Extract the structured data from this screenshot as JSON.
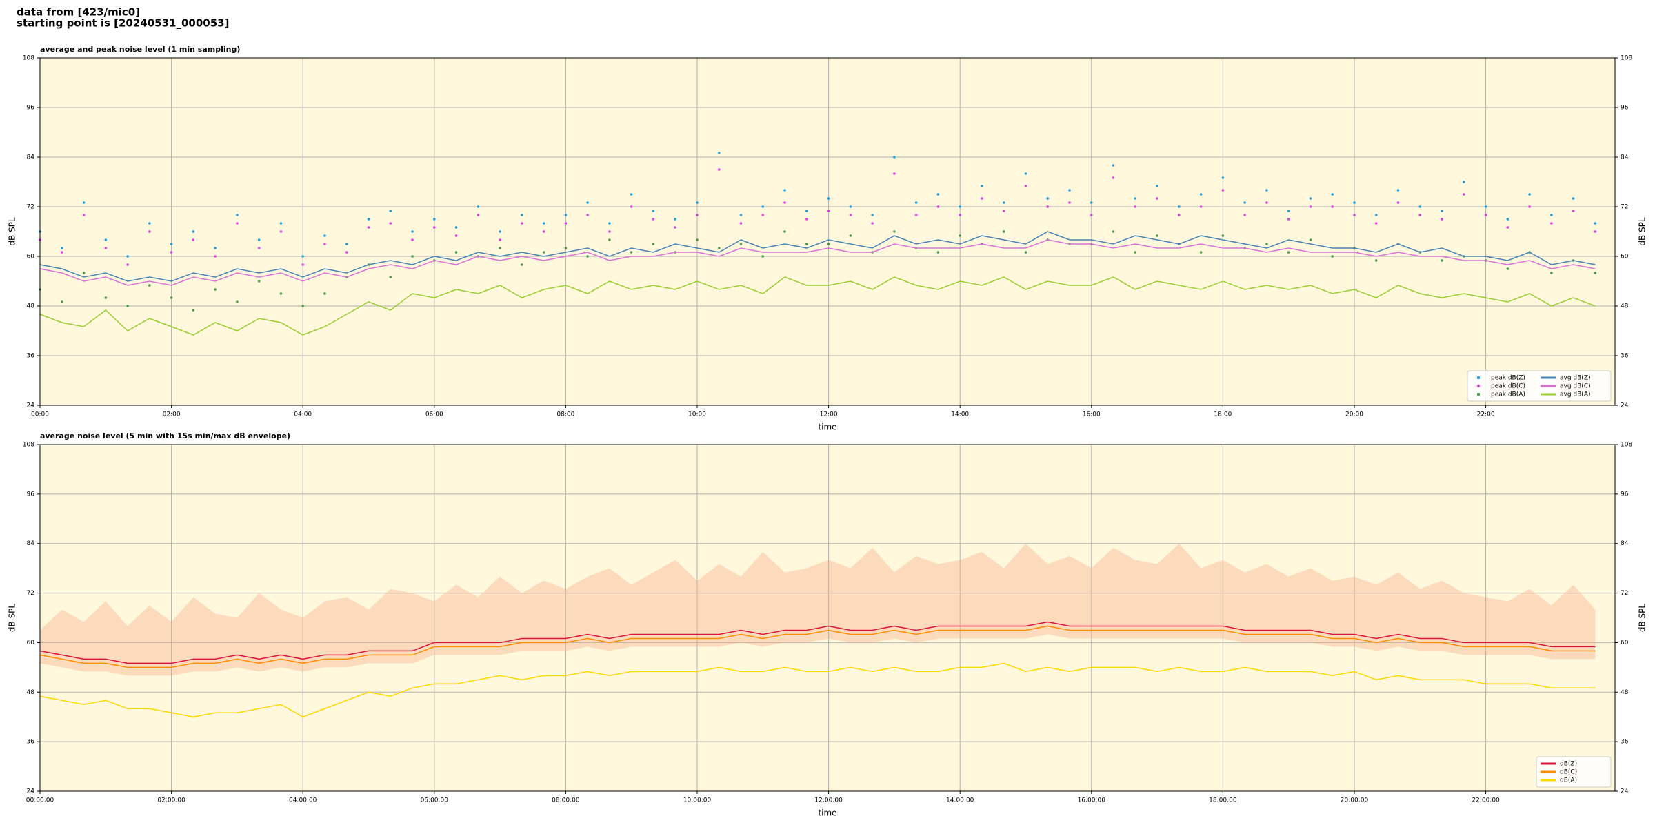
{
  "header": {
    "lines": [
      "data from [423/mic0]",
      "starting point is [20240531_000053]"
    ]
  },
  "chart_data": [
    {
      "type": "line",
      "title": "average and peak noise level (1 min sampling)",
      "xlabel": "time",
      "ylabel": "dB SPL",
      "xlim": [
        0,
        1438
      ],
      "ylim": [
        24,
        108
      ],
      "yticks": [
        24,
        36,
        48,
        60,
        72,
        84,
        96,
        108
      ],
      "xticks": [
        {
          "value": 0,
          "label": "00:00"
        },
        {
          "value": 120,
          "label": "02:00"
        },
        {
          "value": 240,
          "label": "04:00"
        },
        {
          "value": 360,
          "label": "06:00"
        },
        {
          "value": 480,
          "label": "08:00"
        },
        {
          "value": 600,
          "label": "10:00"
        },
        {
          "value": 720,
          "label": "12:00"
        },
        {
          "value": 840,
          "label": "14:00"
        },
        {
          "value": 960,
          "label": "16:00"
        },
        {
          "value": 1080,
          "label": "18:00"
        },
        {
          "value": 1200,
          "label": "20:00"
        },
        {
          "value": 1320,
          "label": "22:00"
        }
      ],
      "grid": true,
      "background": "#fff8dc",
      "legend": {
        "loc": "lower right",
        "ncol": 2
      },
      "x": [
        0,
        20,
        40,
        60,
        80,
        100,
        120,
        140,
        160,
        180,
        200,
        220,
        240,
        260,
        280,
        300,
        320,
        340,
        360,
        380,
        400,
        420,
        440,
        460,
        480,
        500,
        520,
        540,
        560,
        580,
        600,
        620,
        640,
        660,
        680,
        700,
        720,
        740,
        760,
        780,
        800,
        820,
        840,
        860,
        880,
        900,
        920,
        940,
        960,
        980,
        1000,
        1020,
        1040,
        1060,
        1080,
        1100,
        1120,
        1140,
        1160,
        1180,
        1200,
        1220,
        1240,
        1260,
        1280,
        1300,
        1320,
        1340,
        1360,
        1380,
        1400,
        1420
      ],
      "series": [
        {
          "name": "peak dB(Z)",
          "type": "scatter",
          "color": "#1f9fe0",
          "values": [
            66,
            62,
            73,
            64,
            60,
            68,
            63,
            66,
            62,
            70,
            64,
            68,
            60,
            65,
            63,
            69,
            71,
            66,
            69,
            67,
            72,
            66,
            70,
            68,
            70,
            73,
            68,
            75,
            71,
            69,
            73,
            85,
            70,
            72,
            76,
            71,
            74,
            72,
            70,
            84,
            73,
            75,
            72,
            77,
            73,
            80,
            74,
            76,
            73,
            82,
            74,
            77,
            72,
            75,
            79,
            73,
            76,
            71,
            74,
            75,
            73,
            70,
            76,
            72,
            71,
            78,
            72,
            69,
            75,
            70,
            74,
            68
          ]
        },
        {
          "name": "peak dB(C)",
          "type": "scatter",
          "color": "#e040e0",
          "values": [
            64,
            61,
            70,
            62,
            58,
            66,
            61,
            64,
            60,
            68,
            62,
            66,
            58,
            63,
            61,
            67,
            68,
            64,
            67,
            65,
            70,
            64,
            68,
            66,
            68,
            70,
            66,
            72,
            69,
            67,
            70,
            81,
            68,
            70,
            73,
            69,
            71,
            70,
            68,
            80,
            70,
            72,
            70,
            74,
            71,
            77,
            72,
            73,
            70,
            79,
            72,
            74,
            70,
            72,
            76,
            70,
            73,
            69,
            72,
            72,
            70,
            68,
            73,
            70,
            69,
            75,
            70,
            67,
            72,
            68,
            71,
            66
          ]
        },
        {
          "name": "peak dB(A)",
          "type": "scatter",
          "color": "#4a9a4a",
          "values": [
            52,
            49,
            56,
            50,
            48,
            53,
            50,
            47,
            52,
            49,
            54,
            51,
            48,
            51,
            55,
            58,
            55,
            60,
            59,
            61,
            60,
            62,
            58,
            61,
            62,
            60,
            64,
            61,
            63,
            61,
            64,
            62,
            63,
            60,
            66,
            63,
            63,
            65,
            61,
            66,
            62,
            61,
            65,
            63,
            66,
            61,
            64,
            63,
            63,
            66,
            61,
            65,
            63,
            61,
            65,
            62,
            63,
            61,
            64,
            60,
            62,
            59,
            63,
            61,
            59,
            60,
            59,
            57,
            61,
            56,
            59,
            56
          ]
        },
        {
          "name": "avg dB(Z)",
          "type": "line",
          "color": "#4682b4",
          "values": [
            58,
            57,
            55,
            56,
            54,
            55,
            54,
            56,
            55,
            57,
            56,
            57,
            55,
            57,
            56,
            58,
            59,
            58,
            60,
            59,
            61,
            60,
            61,
            60,
            61,
            62,
            60,
            62,
            61,
            63,
            62,
            61,
            64,
            62,
            63,
            62,
            64,
            63,
            62,
            65,
            63,
            64,
            63,
            65,
            64,
            63,
            66,
            64,
            64,
            63,
            65,
            64,
            63,
            65,
            64,
            63,
            62,
            64,
            63,
            62,
            62,
            61,
            63,
            61,
            62,
            60,
            60,
            59,
            61,
            58,
            59,
            58
          ]
        },
        {
          "name": "avg dB(C)",
          "type": "line",
          "color": "#da70d6",
          "values": [
            57,
            56,
            54,
            55,
            53,
            54,
            53,
            55,
            54,
            56,
            55,
            56,
            54,
            56,
            55,
            57,
            58,
            57,
            59,
            58,
            60,
            59,
            60,
            59,
            60,
            61,
            59,
            60,
            60,
            61,
            61,
            60,
            62,
            61,
            61,
            61,
            62,
            61,
            61,
            63,
            62,
            62,
            62,
            63,
            62,
            62,
            64,
            63,
            63,
            62,
            63,
            62,
            62,
            63,
            62,
            62,
            61,
            62,
            61,
            61,
            61,
            60,
            61,
            60,
            60,
            59,
            59,
            58,
            59,
            57,
            58,
            57
          ]
        },
        {
          "name": "avg dB(A)",
          "type": "line",
          "color": "#9acd32",
          "values": [
            46,
            44,
            43,
            47,
            42,
            45,
            43,
            41,
            44,
            42,
            45,
            44,
            41,
            43,
            46,
            49,
            47,
            51,
            50,
            52,
            51,
            53,
            50,
            52,
            53,
            51,
            54,
            52,
            53,
            52,
            54,
            52,
            53,
            51,
            55,
            53,
            53,
            54,
            52,
            55,
            53,
            52,
            54,
            53,
            55,
            52,
            54,
            53,
            53,
            55,
            52,
            54,
            53,
            52,
            54,
            52,
            53,
            52,
            53,
            51,
            52,
            50,
            53,
            51,
            50,
            51,
            50,
            49,
            51,
            48,
            50,
            48
          ]
        }
      ]
    },
    {
      "type": "line",
      "title": "average noise level (5 min with 15s min/max dB envelope)",
      "xlabel": "time",
      "ylabel": "dB SPL",
      "xlim": [
        0,
        1438
      ],
      "ylim": [
        24,
        108
      ],
      "yticks": [
        24,
        36,
        48,
        60,
        72,
        84,
        96,
        108
      ],
      "xticks": [
        {
          "value": 0,
          "label": "00:00:00"
        },
        {
          "value": 120,
          "label": "02:00:00"
        },
        {
          "value": 240,
          "label": "04:00:00"
        },
        {
          "value": 360,
          "label": "06:00:00"
        },
        {
          "value": 480,
          "label": "08:00:00"
        },
        {
          "value": 600,
          "label": "10:00:00"
        },
        {
          "value": 720,
          "label": "12:00:00"
        },
        {
          "value": 840,
          "label": "14:00:00"
        },
        {
          "value": 960,
          "label": "16:00:00"
        },
        {
          "value": 1080,
          "label": "18:00:00"
        },
        {
          "value": 1200,
          "label": "20:00:00"
        },
        {
          "value": 1320,
          "label": "22:00:00"
        }
      ],
      "grid": true,
      "background": "#fff8dc",
      "legend": {
        "loc": "lower right",
        "ncol": 1
      },
      "x": [
        0,
        20,
        40,
        60,
        80,
        100,
        120,
        140,
        160,
        180,
        200,
        220,
        240,
        260,
        280,
        300,
        320,
        340,
        360,
        380,
        400,
        420,
        440,
        460,
        480,
        500,
        520,
        540,
        560,
        580,
        600,
        620,
        640,
        660,
        680,
        700,
        720,
        740,
        760,
        780,
        800,
        820,
        840,
        860,
        880,
        900,
        920,
        940,
        960,
        980,
        1000,
        1020,
        1040,
        1060,
        1080,
        1100,
        1120,
        1140,
        1160,
        1180,
        1200,
        1220,
        1240,
        1260,
        1280,
        1300,
        1320,
        1340,
        1360,
        1380,
        1400,
        1420
      ],
      "envelope": {
        "color": "#f4a582",
        "alpha": 0.35,
        "upper": [
          63,
          68,
          65,
          70,
          64,
          69,
          65,
          71,
          67,
          66,
          72,
          68,
          66,
          70,
          71,
          68,
          73,
          72,
          70,
          74,
          71,
          76,
          72,
          75,
          73,
          76,
          78,
          74,
          77,
          80,
          75,
          79,
          76,
          82,
          77,
          78,
          80,
          78,
          83,
          77,
          81,
          79,
          80,
          82,
          78,
          84,
          79,
          81,
          78,
          83,
          80,
          79,
          84,
          78,
          80,
          77,
          79,
          76,
          78,
          75,
          76,
          74,
          77,
          73,
          75,
          72,
          71,
          70,
          73,
          69,
          74,
          68
        ],
        "lower": [
          55,
          54,
          53,
          53,
          52,
          52,
          52,
          53,
          53,
          54,
          53,
          54,
          53,
          54,
          54,
          55,
          55,
          55,
          57,
          57,
          57,
          57,
          58,
          58,
          58,
          59,
          58,
          59,
          59,
          59,
          59,
          59,
          60,
          59,
          60,
          60,
          61,
          60,
          60,
          61,
          60,
          61,
          61,
          61,
          61,
          61,
          62,
          61,
          61,
          61,
          61,
          61,
          61,
          61,
          61,
          60,
          60,
          60,
          60,
          59,
          59,
          58,
          59,
          58,
          58,
          57,
          57,
          57,
          57,
          56,
          56,
          56
        ]
      },
      "series": [
        {
          "name": "dB(Z)",
          "type": "line",
          "color": "#dc143c",
          "values": [
            58,
            57,
            56,
            56,
            55,
            55,
            55,
            56,
            56,
            57,
            56,
            57,
            56,
            57,
            57,
            58,
            58,
            58,
            60,
            60,
            60,
            60,
            61,
            61,
            61,
            62,
            61,
            62,
            62,
            62,
            62,
            62,
            63,
            62,
            63,
            63,
            64,
            63,
            63,
            64,
            63,
            64,
            64,
            64,
            64,
            64,
            65,
            64,
            64,
            64,
            64,
            64,
            64,
            64,
            64,
            63,
            63,
            63,
            63,
            62,
            62,
            61,
            62,
            61,
            61,
            60,
            60,
            60,
            60,
            59,
            59,
            59
          ]
        },
        {
          "name": "dB(C)",
          "type": "line",
          "color": "#ff8c00",
          "values": [
            57,
            56,
            55,
            55,
            54,
            54,
            54,
            55,
            55,
            56,
            55,
            56,
            55,
            56,
            56,
            57,
            57,
            57,
            59,
            59,
            59,
            59,
            60,
            60,
            60,
            61,
            60,
            61,
            61,
            61,
            61,
            61,
            62,
            61,
            62,
            62,
            63,
            62,
            62,
            63,
            62,
            63,
            63,
            63,
            63,
            63,
            64,
            63,
            63,
            63,
            63,
            63,
            63,
            63,
            63,
            62,
            62,
            62,
            62,
            61,
            61,
            60,
            61,
            60,
            60,
            59,
            59,
            59,
            59,
            58,
            58,
            58
          ]
        },
        {
          "name": "dB(A)",
          "type": "line",
          "color": "#ffd700",
          "values": [
            47,
            46,
            45,
            46,
            44,
            44,
            43,
            42,
            43,
            43,
            44,
            45,
            42,
            44,
            46,
            48,
            47,
            49,
            50,
            50,
            51,
            52,
            51,
            52,
            52,
            53,
            52,
            53,
            53,
            53,
            53,
            54,
            53,
            53,
            54,
            53,
            53,
            54,
            53,
            54,
            53,
            53,
            54,
            54,
            55,
            53,
            54,
            53,
            54,
            54,
            54,
            53,
            54,
            53,
            53,
            54,
            53,
            53,
            53,
            52,
            53,
            51,
            52,
            51,
            51,
            51,
            50,
            50,
            50,
            49,
            49,
            49
          ]
        }
      ]
    }
  ]
}
